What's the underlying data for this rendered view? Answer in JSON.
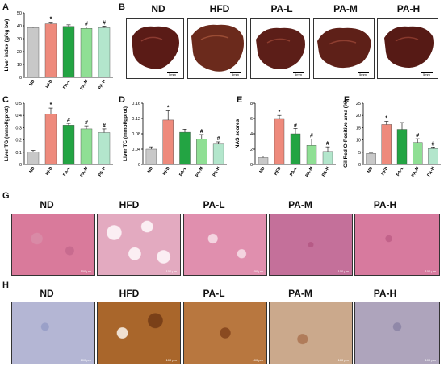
{
  "groups": [
    "ND",
    "HFD",
    "PA-L",
    "PA-M",
    "PA-H"
  ],
  "panels": {
    "A": "A",
    "B": "B",
    "C": "C",
    "D": "D",
    "E": "E",
    "F": "F",
    "G": "G",
    "H": "H"
  },
  "scale_bar_b": "5mm",
  "scale_bar_micro": "100 μm",
  "colors": {
    "ND": "#c8c8c8",
    "HFD": "#ee8a7c",
    "PA-L": "#23a443",
    "PA-M": "#8fdf94",
    "PA-H": "#b3e6cc"
  },
  "chart_data": [
    {
      "id": "A",
      "type": "bar",
      "ylabel": "Liver index (g/kg bw)",
      "ylim": [
        0,
        50
      ],
      "yticks": [
        "0",
        "10",
        "20",
        "30",
        "40",
        "50"
      ],
      "categories": [
        "ND",
        "HFD",
        "PA-L",
        "PA-M",
        "PA-H"
      ],
      "values": [
        38.5,
        41.5,
        39.5,
        38.0,
        38.5
      ],
      "errors": [
        0.5,
        1.2,
        1.2,
        1.0,
        1.3
      ],
      "markers": [
        "",
        "*",
        "",
        "#",
        "#"
      ]
    },
    {
      "id": "C",
      "type": "bar",
      "ylabel": "Liver TG (mmol/gprot)",
      "ylim": [
        0,
        0.5
      ],
      "yticks": [
        "0",
        "0.1",
        "0.2",
        "0.3",
        "0.4",
        "0.5"
      ],
      "categories": [
        "ND",
        "HFD",
        "PA-L",
        "PA-M",
        "PA-H"
      ],
      "values": [
        0.1,
        0.41,
        0.32,
        0.29,
        0.26
      ],
      "errors": [
        0.015,
        0.05,
        0.015,
        0.025,
        0.03
      ],
      "markers": [
        "",
        "*",
        "#",
        "#",
        "#"
      ]
    },
    {
      "id": "D",
      "type": "bar",
      "ylabel": "Liver TC (mmol/gprot)",
      "ylim": [
        0,
        0.16
      ],
      "yticks": [
        "0",
        "0.04",
        "0.08",
        "0.12",
        "0.16"
      ],
      "categories": [
        "ND",
        "HFD",
        "PA-L",
        "PA-M",
        "PA-H"
      ],
      "values": [
        0.04,
        0.116,
        0.084,
        0.066,
        0.053
      ],
      "errors": [
        0.006,
        0.024,
        0.008,
        0.012,
        0.006
      ],
      "markers": [
        "",
        "*",
        "",
        "#",
        "#"
      ]
    },
    {
      "id": "E",
      "type": "bar",
      "ylabel": "NAS scores",
      "ylim": [
        0,
        8
      ],
      "yticks": [
        "0",
        "2",
        "4",
        "6",
        "8"
      ],
      "categories": [
        "ND",
        "HFD",
        "PA-L",
        "PA-M",
        "PA-H"
      ],
      "values": [
        0.9,
        6.0,
        4.0,
        2.5,
        1.7
      ],
      "errors": [
        0.2,
        0.4,
        0.7,
        0.8,
        0.6
      ],
      "markers": [
        "",
        "*",
        "#",
        "#",
        "#"
      ]
    },
    {
      "id": "F",
      "type": "bar",
      "ylabel": "Oil Red O-Positive area (%)",
      "ylim": [
        0,
        25
      ],
      "yticks": [
        "0",
        "5",
        "10",
        "15",
        "20",
        "25"
      ],
      "categories": [
        "ND",
        "HFD",
        "PA-L",
        "PA-M",
        "PA-H"
      ],
      "values": [
        4.5,
        16.3,
        14.3,
        9.0,
        6.5
      ],
      "errors": [
        0.4,
        1.3,
        2.8,
        1.5,
        0.6
      ],
      "markers": [
        "",
        "*",
        "",
        "#",
        "#"
      ]
    }
  ]
}
